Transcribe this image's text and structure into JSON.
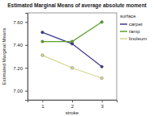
{
  "chart_data": {
    "type": "line",
    "title": "Estimated Marginal Means of average absolute moment",
    "x_label": "stroke",
    "y_label": "Estimated Marginal Means",
    "legend_title": "surface",
    "legend": "right",
    "grid": false,
    "marker": "circle",
    "categories": [
      "1",
      "2",
      "3"
    ],
    "series": [
      {
        "name": "carpet",
        "color": "#3b3b8f",
        "values": [
          7.51,
          7.41,
          7.21
        ]
      },
      {
        "name": "ramp",
        "color": "#5aa02c",
        "values": [
          7.43,
          7.43,
          7.6
        ]
      },
      {
        "name": "linoleum",
        "color": "#d6d68f",
        "values": [
          7.31,
          7.2,
          7.11
        ]
      }
    ],
    "ylim": [
      6.92,
      7.68
    ],
    "yticks": [
      {
        "value": 7,
        "label": "7.00"
      },
      {
        "value": 7.2,
        "label": "7.20"
      },
      {
        "value": 7.4,
        "label": "7.40"
      },
      {
        "value": 7.6,
        "label": "7.60"
      }
    ]
  }
}
